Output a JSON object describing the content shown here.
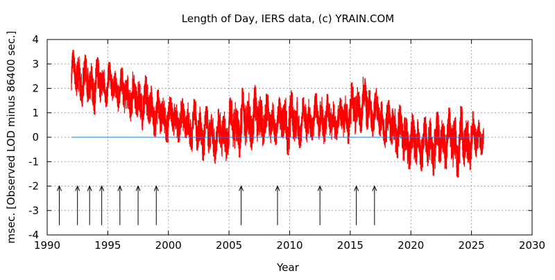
{
  "chart_data": {
    "type": "line",
    "title": "Length of Day, IERS data, (c) YRAIN.COM",
    "xlabel": "Year",
    "ylabel": "msec. [Observed LOD minus 86400 sec.]",
    "xlim": [
      1990,
      2030
    ],
    "ylim": [
      -4,
      4
    ],
    "xticks": [
      "1990",
      "1995",
      "2000",
      "2005",
      "2010",
      "2015",
      "2020",
      "2025",
      "2030"
    ],
    "yticks": [
      "-4",
      "-3",
      "-2",
      "-1",
      "0",
      "1",
      "2",
      "3",
      "4"
    ],
    "grid": true,
    "legend": "none",
    "series": [
      {
        "color": "#ff0000",
        "style": "daily values, shown as yearly range",
        "x": [
          1992,
          1993,
          1994,
          1995,
          1996,
          1997,
          1998,
          1999,
          2000,
          2001,
          2002,
          2003,
          2004,
          2005,
          2006,
          2007,
          2008,
          2009,
          2010,
          2011,
          2012,
          2013,
          2014,
          2015,
          2016,
          2017,
          2018,
          2019,
          2020,
          2021,
          2022,
          2023,
          2024,
          2025,
          2026
        ],
        "low": [
          1.7,
          1.2,
          0.9,
          1.3,
          1.0,
          0.6,
          0.2,
          0.0,
          -0.3,
          -0.2,
          -0.7,
          -1.0,
          -1.1,
          -1.0,
          -0.8,
          -0.6,
          -0.4,
          -0.3,
          -0.8,
          -0.4,
          -0.2,
          -0.3,
          -0.2,
          -0.3,
          0.2,
          0.0,
          -0.5,
          -0.9,
          -1.4,
          -1.4,
          -1.6,
          -1.3,
          -1.7,
          -1.3,
          -0.6
        ],
        "high": [
          3.6,
          3.4,
          3.3,
          3.1,
          2.9,
          2.7,
          2.6,
          2.0,
          1.7,
          1.6,
          1.6,
          1.3,
          1.1,
          1.6,
          2.0,
          2.2,
          1.8,
          1.6,
          2.0,
          1.6,
          1.8,
          1.8,
          1.5,
          2.2,
          2.5,
          2.1,
          1.5,
          1.6,
          1.0,
          0.8,
          1.0,
          1.2,
          1.3,
          1.1,
          0.8
        ]
      },
      {
        "color": "#0080ff",
        "style": "zero reference line",
        "x": [
          1992,
          2026
        ],
        "y": [
          0,
          0
        ]
      }
    ],
    "annotations": {
      "type": "arrows (leap seconds)",
      "color": "#000000",
      "x": [
        1991.0,
        1992.5,
        1993.5,
        1994.5,
        1996.0,
        1997.5,
        1999.0,
        2006.0,
        2009.0,
        2012.5,
        2015.5,
        2017.0
      ],
      "y_from": -3.6,
      "y_to": -2.0
    }
  }
}
